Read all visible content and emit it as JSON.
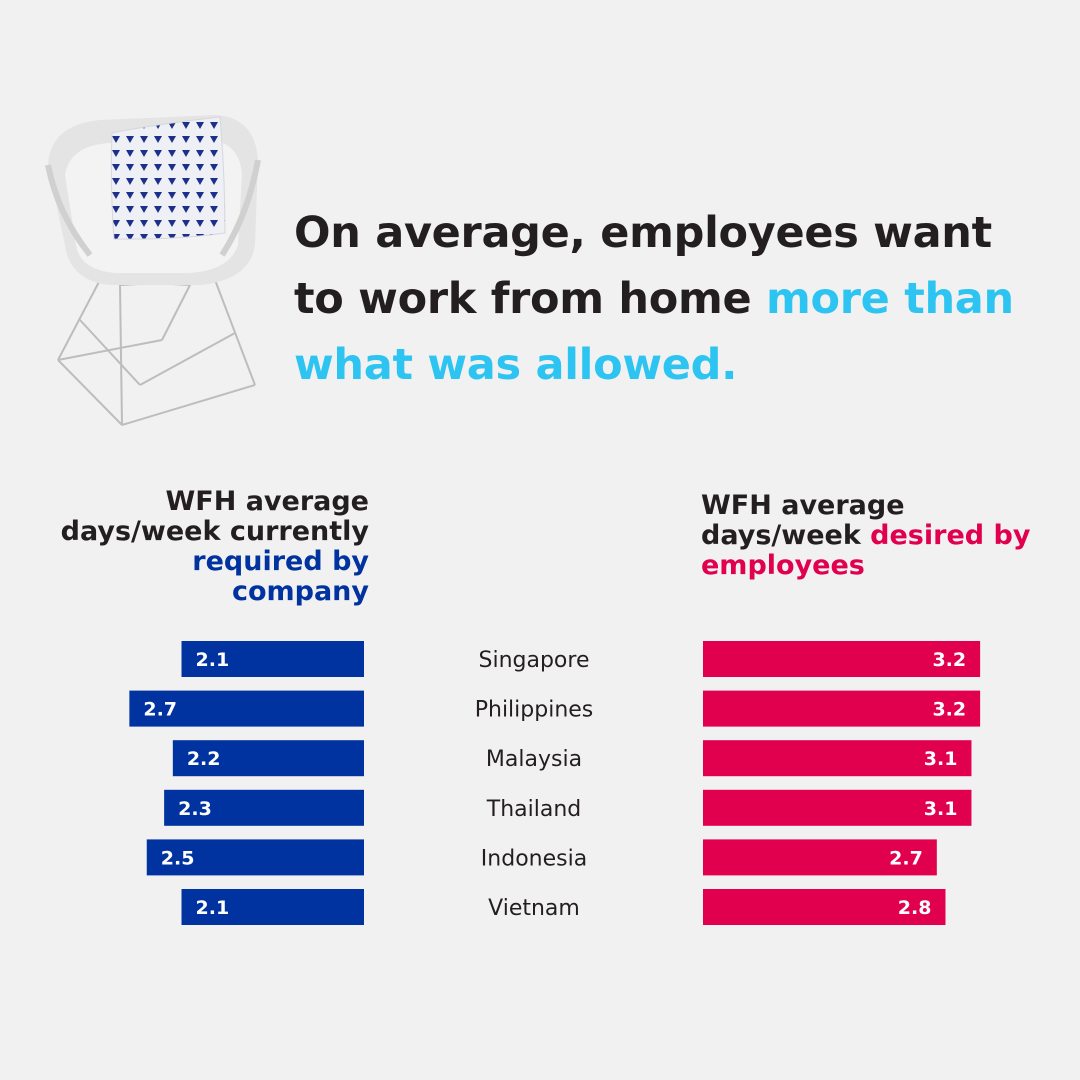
{
  "headline": {
    "part1": "On average, employees want to work from home ",
    "highlight": "more than what was allowed."
  },
  "left_title": {
    "plain": "WFH average days/week currently ",
    "accent": "required by company"
  },
  "right_title": {
    "plain": "WFH average days/week ",
    "accent": "desired by employees"
  },
  "colors": {
    "required": "#0033a0",
    "desired": "#e0004d",
    "highlight": "#2ec4f1",
    "text": "#231f20",
    "background": "#f2f1f1"
  },
  "chart_data": {
    "type": "bar",
    "categories": [
      "Singapore",
      "Philippines",
      "Malaysia",
      "Thailand",
      "Indonesia",
      "Vietnam"
    ],
    "series": [
      {
        "name": "WFH average days/week currently required by company",
        "values": [
          2.1,
          2.7,
          2.2,
          2.3,
          2.5,
          2.1
        ]
      },
      {
        "name": "WFH average days/week desired by employees",
        "values": [
          3.2,
          3.2,
          3.1,
          3.1,
          2.7,
          2.8
        ]
      }
    ],
    "title": "",
    "xlabel": "",
    "ylabel": "",
    "grid": false,
    "legend": "none"
  }
}
